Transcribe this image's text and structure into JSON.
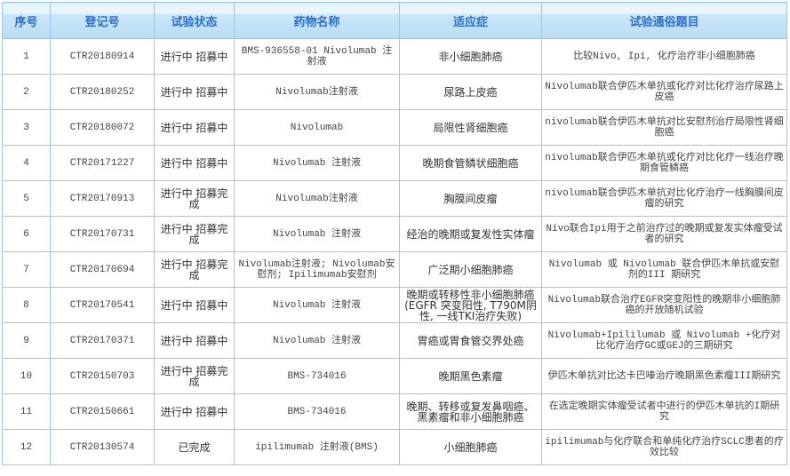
{
  "headers": [
    "序号",
    "登记号",
    "试验状态",
    "药物名称",
    "适应症",
    "试验通俗题目"
  ],
  "rows": [
    {
      "no": "1",
      "reg": "CTR20180914",
      "status": "进行中 招募中",
      "drug": "BMS-936558-01 Nivolumab 注射液",
      "indication": "非小细胞肺癌",
      "title": "比较Nivo, Ipi, 化疗治疗非小细胞肺癌"
    },
    {
      "no": "2",
      "reg": "CTR20180252",
      "status": "进行中 招募中",
      "drug": "Nivolumab注射液",
      "indication": "尿路上皮癌",
      "title": "Nivolumab联合伊匹木单抗或化疗对比化疗治疗尿路上皮癌"
    },
    {
      "no": "3",
      "reg": "CTR20180072",
      "status": "进行中 招募中",
      "drug": "Nivolumab",
      "indication": "局限性肾细胞癌",
      "title": "nivolumab联合伊匹木单抗对比安慰剂治疗局限性肾细胞癌"
    },
    {
      "no": "4",
      "reg": "CTR20171227",
      "status": "进行中 招募中",
      "drug": "Nivolumab 注射液",
      "indication": "晚期食管鳞状细胞癌",
      "title": "nivolumab联合伊匹木单抗或化疗对比化疗一线治疗晚期食管鳞癌"
    },
    {
      "no": "5",
      "reg": "CTR20170913",
      "status": "进行中 招募完成",
      "drug": "Nivolumab注射液",
      "indication": "胸膜间皮瘤",
      "title": "nivolumab联合伊匹木单抗对比化疗治疗一线胸膜间皮瘤的研究"
    },
    {
      "no": "6",
      "reg": "CTR20170731",
      "status": "进行中 招募完成",
      "drug": "Nivolumab 注射液",
      "indication": "经治的晚期或复发性实体瘤",
      "title": "Nivo联合Ipi用于之前治疗过的晚期或复发实体瘤受试者的研究"
    },
    {
      "no": "7",
      "reg": "CTR20170694",
      "status": "进行中 招募完成",
      "drug": "Nivolumab注射液; Nivolumab安慰剂; Ipilimumab安慰剂",
      "indication": "广泛期小细胞肺癌",
      "title": "Nivolumab 或 Nivolumab 联合伊匹木单抗或安慰剂的III 期研究"
    },
    {
      "no": "8",
      "reg": "CTR20170541",
      "status": "进行中 招募中",
      "drug": "Nivolumab 注射液",
      "indication": "晚期或转移性非小细胞肺癌(EGFR 突变阳性, T790M阴性, 一线TKI治疗失败)",
      "title": "Nivolumab联合治疗EGFR突变阳性的晚期非小细胞肺癌的开放随机试验"
    },
    {
      "no": "9",
      "reg": "CTR20170371",
      "status": "进行中 招募中",
      "drug": "Nivolumab 注射液",
      "indication": "胃癌或胃食管交界处癌",
      "title": "Nivolumab+Ipililumab 或 Nivolumab +化疗对比化疗治疗GC或GEJ的三期研究"
    },
    {
      "no": "10",
      "reg": "CTR20150703",
      "status": "进行中 招募完成",
      "drug": "BMS-734016",
      "indication": "晚期黑色素瘤",
      "title": "伊匹木单抗对比达卡巴嗪治疗晚期黑色素瘤III期研究"
    },
    {
      "no": "11",
      "reg": "CTR20150661",
      "status": "进行中 招募中",
      "drug": "BMS-734016",
      "indication": "晚期、转移或复发鼻咽癌、黑素瘤和非小细胞肺癌",
      "title": "在选定晚期实体瘤受试者中进行的伊匹木单抗的I期研究"
    },
    {
      "no": "12",
      "reg": "CTR20130574",
      "status": "已完成",
      "drug": "ipilimumab 注射液(BMS)",
      "indication": "小细胞肺癌",
      "title": "ipilimumab与化疗联合和单纯化疗治疗SCLC患者的疗效比较"
    }
  ]
}
